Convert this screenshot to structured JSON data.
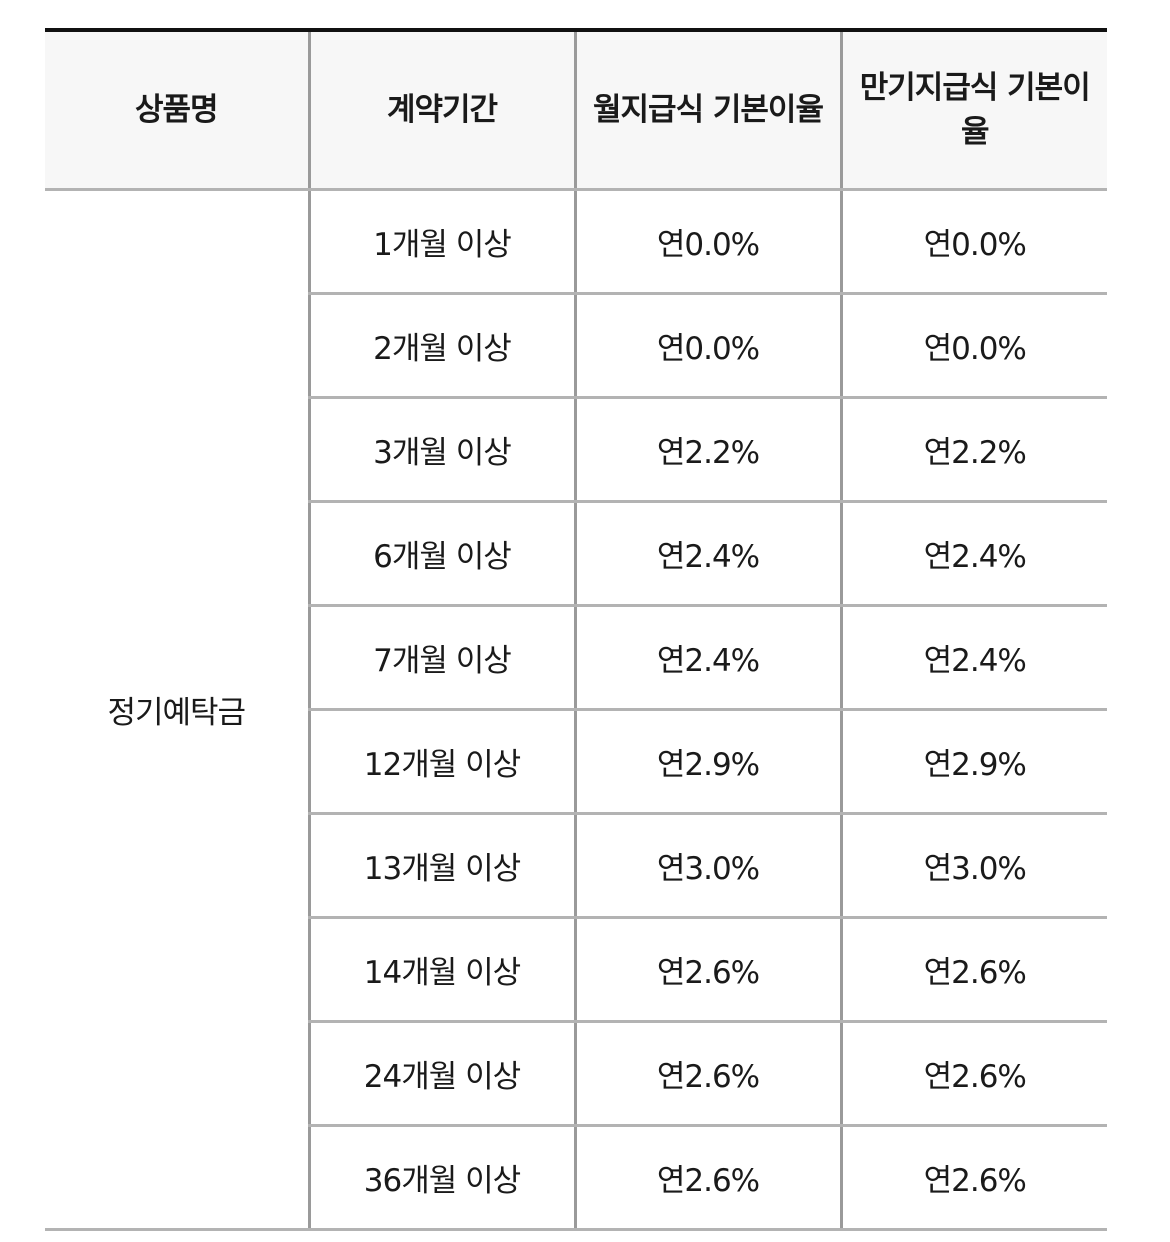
{
  "table": {
    "headers": [
      "상품명",
      "계약기간",
      "월지급식 기본이율",
      "만기지급식 기본이율"
    ],
    "product_name": "정기예탁금",
    "rows": [
      {
        "period": "1개월 이상",
        "monthly_rate": "연0.0%",
        "maturity_rate": "연0.0%"
      },
      {
        "period": "2개월 이상",
        "monthly_rate": "연0.0%",
        "maturity_rate": "연0.0%"
      },
      {
        "period": "3개월 이상",
        "monthly_rate": "연2.2%",
        "maturity_rate": "연2.2%"
      },
      {
        "period": "6개월 이상",
        "monthly_rate": "연2.4%",
        "maturity_rate": "연2.4%"
      },
      {
        "period": "7개월 이상",
        "monthly_rate": "연2.4%",
        "maturity_rate": "연2.4%"
      },
      {
        "period": "12개월 이상",
        "monthly_rate": "연2.9%",
        "maturity_rate": "연2.9%"
      },
      {
        "period": "13개월 이상",
        "monthly_rate": "연3.0%",
        "maturity_rate": "연3.0%"
      },
      {
        "period": "14개월 이상",
        "monthly_rate": "연2.6%",
        "maturity_rate": "연2.6%"
      },
      {
        "period": "24개월 이상",
        "monthly_rate": "연2.6%",
        "maturity_rate": "연2.6%"
      },
      {
        "period": "36개월 이상",
        "monthly_rate": "연2.6%",
        "maturity_rate": "연2.6%"
      }
    ]
  },
  "colors": {
    "header_background": "#f7f7f7",
    "top_border": "#111111",
    "row_divider": "#b3b3b3",
    "column_divider": "#9a9a9a",
    "text": "#1a1a1a"
  }
}
